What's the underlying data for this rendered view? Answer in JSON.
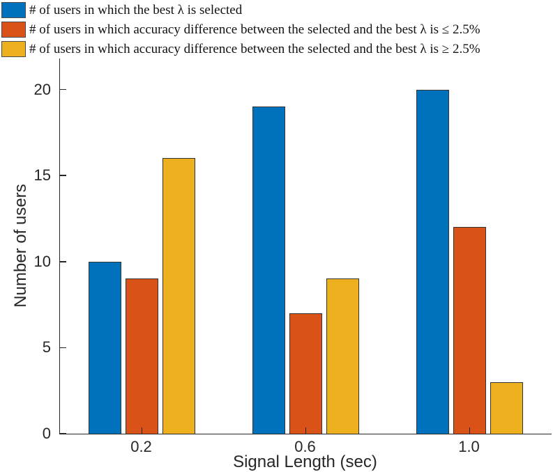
{
  "chart_data": {
    "type": "bar",
    "title": "",
    "categories": [
      "0.2",
      "0.6",
      "1.0"
    ],
    "series": [
      {
        "name": "# of users in which the best λ is selected",
        "color": "#0072BD",
        "values": [
          10,
          19,
          20
        ]
      },
      {
        "name": "# of users in which accuracy difference between the selected and the best λ is ≤ 2.5%",
        "color": "#D95319",
        "values": [
          9,
          7,
          12
        ]
      },
      {
        "name": "# of users in which accuracy difference between the selected and the best λ is ≥ 2.5%",
        "color": "#EDB120",
        "values": [
          16,
          9,
          3
        ]
      }
    ],
    "xlabel": "Signal Length (sec)",
    "ylabel": "Number of users",
    "ylim": [
      0,
      21.8
    ],
    "yticks": [
      "0",
      "5",
      "10",
      "15",
      "20"
    ],
    "grid": false,
    "legend_position": "top-left",
    "axis_color": "#262626",
    "bar_edge_color": "#333333"
  }
}
